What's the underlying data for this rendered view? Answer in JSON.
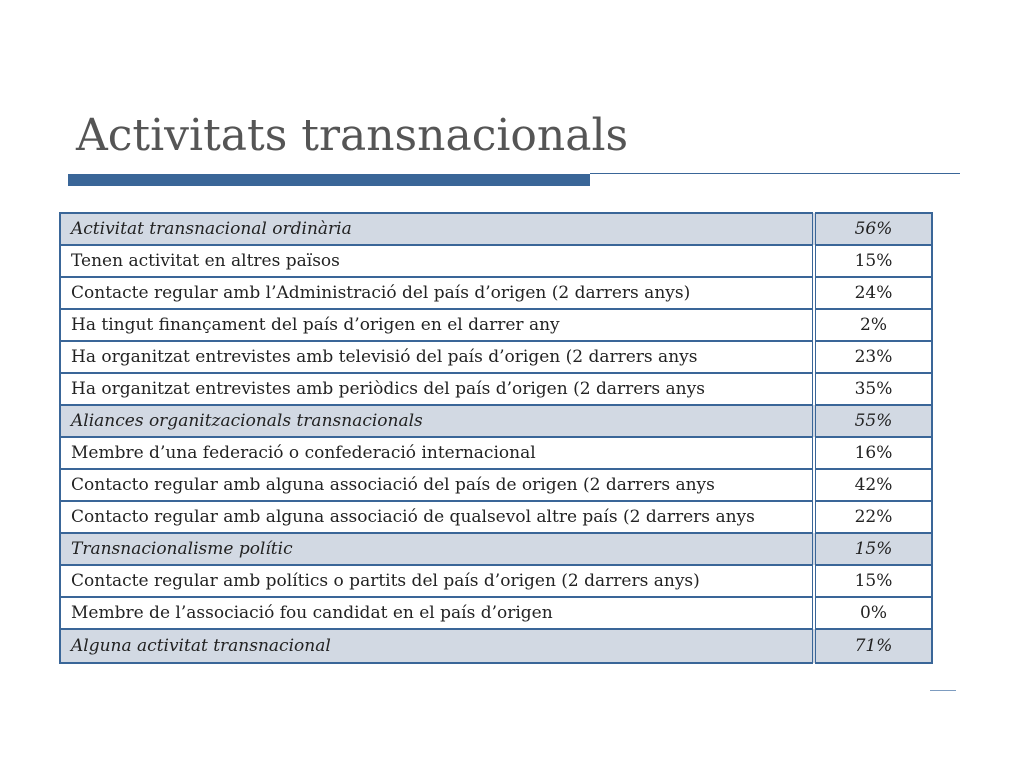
{
  "slide": {
    "title": "Activitats transnacionals"
  },
  "table": {
    "rows": [
      {
        "label": "Activitat transnacional ordinària",
        "value": "56%",
        "category": true
      },
      {
        "label": "Tenen activitat en altres països",
        "value": "15%",
        "category": false
      },
      {
        "label": "Contacte regular amb l’Administració del país d’origen (2 darrers anys)",
        "value": "24%",
        "category": false
      },
      {
        "label": "Ha tingut finançament del país d’origen en el darrer any",
        "value": "2%",
        "category": false
      },
      {
        "label": "Ha organitzat entrevistes amb televisió del país d’origen (2 darrers anys",
        "value": "23%",
        "category": false
      },
      {
        "label": "Ha organitzat entrevistes amb periòdics del país d’origen (2 darrers anys",
        "value": "35%",
        "category": false
      },
      {
        "label": "Aliances organitzacionals transnacionals",
        "value": "55%",
        "category": true
      },
      {
        "label": "Membre d’una federació o confederació internacional",
        "value": "16%",
        "category": false
      },
      {
        "label": "Contacto regular amb alguna associació del país de origen (2 darrers anys",
        "value": "42%",
        "category": false
      },
      {
        "label": "Contacto regular amb alguna associació de qualsevol altre país (2 darrers anys",
        "value": "22%",
        "category": false
      },
      {
        "label": "Transnacionalisme polític",
        "value": "15%",
        "category": true
      },
      {
        "label": "Contacte regular amb polítics o partits del país d’origen (2 darrers anys)",
        "value": "15%",
        "category": false
      },
      {
        "label": "Membre de l’associació fou candidat en el país d’origen",
        "value": "0%",
        "category": false
      },
      {
        "label": "Alguna activitat transnacional",
        "value": "71%",
        "category": true
      }
    ]
  },
  "colors": {
    "accent": "#3a6698",
    "category_bg": "#d2d9e3",
    "title": "#555555"
  }
}
